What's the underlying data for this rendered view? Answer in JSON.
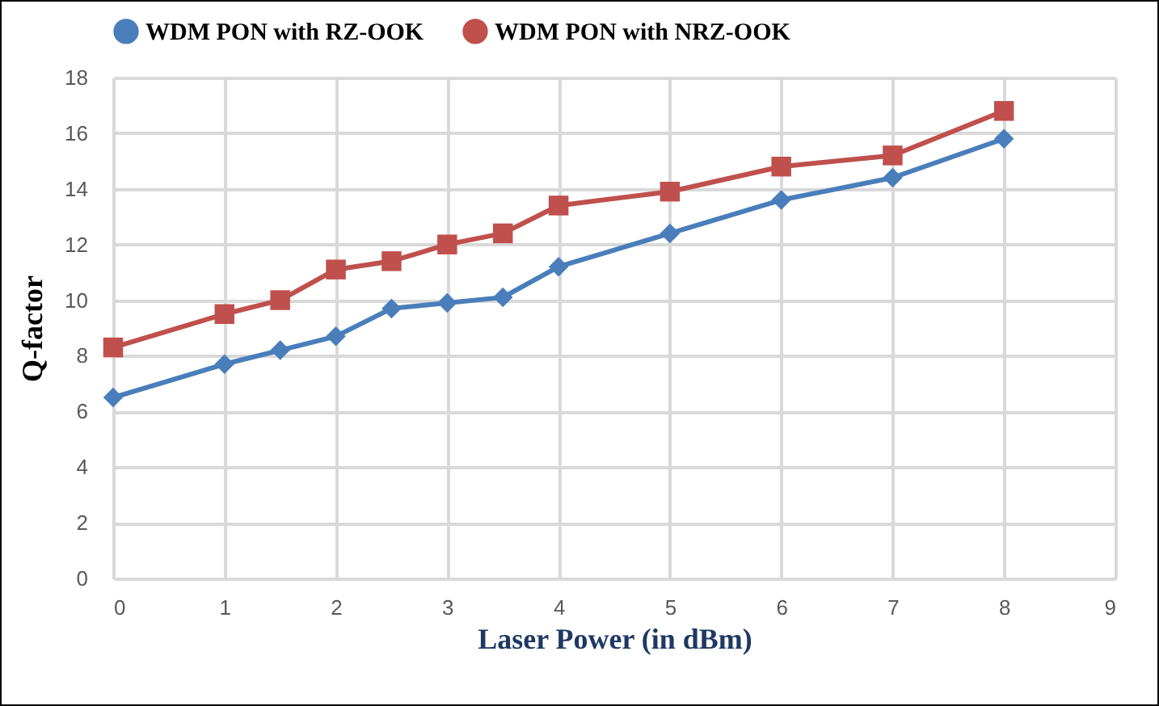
{
  "chart_data": {
    "type": "line",
    "xlabel": "Laser Power (in dBm)",
    "ylabel": "Q-factor",
    "x": [
      0,
      1,
      1.5,
      2,
      2.5,
      3,
      3.5,
      4,
      5,
      6,
      7,
      8
    ],
    "series": [
      {
        "name": "WDM PON with RZ-OOK",
        "color": "#4a7ebb",
        "marker": "diamond",
        "values": [
          6.5,
          7.7,
          8.2,
          8.7,
          9.7,
          9.9,
          10.1,
          11.2,
          12.4,
          13.6,
          14.4,
          15.8
        ]
      },
      {
        "name": "WDM PON with NRZ-OOK",
        "color": "#c0504d",
        "marker": "square",
        "values": [
          8.3,
          9.5,
          10.0,
          11.1,
          11.4,
          12.0,
          12.4,
          13.4,
          13.9,
          14.8,
          15.2,
          16.8
        ]
      }
    ],
    "xlim": [
      0,
      9
    ],
    "xticks": [
      0,
      1,
      2,
      3,
      4,
      5,
      6,
      7,
      8,
      9
    ],
    "ylim": [
      0,
      18
    ],
    "yticks": [
      0,
      2,
      4,
      6,
      8,
      10,
      12,
      14,
      16,
      18
    ],
    "grid": true,
    "legend": "top",
    "line_style": "solid"
  }
}
